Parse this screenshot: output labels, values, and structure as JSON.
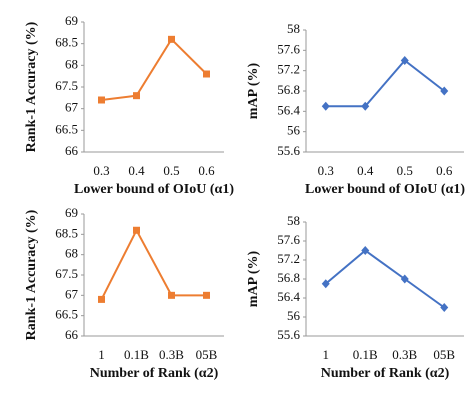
{
  "chart_data": [
    {
      "type": "line",
      "marker": "square",
      "color": "#ED7D31",
      "ylabel": "Rank-1 Accuracy (%)",
      "xlabel": "Lower bound of OIoU (α1)",
      "categories": [
        "0.3",
        "0.4",
        "0.5",
        "0.6"
      ],
      "values": [
        67.2,
        67.3,
        68.6,
        67.8
      ],
      "ylim": [
        66,
        69
      ],
      "yticks": [
        66,
        66.5,
        67,
        67.5,
        68,
        68.5,
        69
      ]
    },
    {
      "type": "line",
      "marker": "diamond",
      "color": "#4472C4",
      "ylabel": "mAP (%)",
      "xlabel": "Lower bound of OIoU (α1)",
      "categories": [
        "0.3",
        "0.4",
        "0.5",
        "0.6"
      ],
      "values": [
        56.5,
        56.5,
        57.4,
        56.8
      ],
      "ylim": [
        55.6,
        58
      ],
      "yticks": [
        55.6,
        56,
        56.4,
        56.8,
        57.2,
        57.6,
        58
      ]
    },
    {
      "type": "line",
      "marker": "square",
      "color": "#ED7D31",
      "ylabel": "Rank-1 Accuracy (%)",
      "xlabel": "Number of Rank (α2)",
      "categories": [
        "1",
        "0.1B",
        "0.3B",
        "05B"
      ],
      "values": [
        66.9,
        68.6,
        67.0,
        67.0
      ],
      "ylim": [
        66,
        69
      ],
      "yticks": [
        66,
        66.5,
        67,
        67.5,
        68,
        68.5,
        69
      ]
    },
    {
      "type": "line",
      "marker": "diamond",
      "color": "#4472C4",
      "ylabel": "mAP (%)",
      "xlabel": "Number of Rank (α2)",
      "categories": [
        "1",
        "0.1B",
        "0.3B",
        "05B"
      ],
      "values": [
        56.7,
        57.4,
        56.8,
        56.2
      ],
      "ylim": [
        55.6,
        58
      ],
      "yticks": [
        55.6,
        56,
        56.4,
        56.8,
        57.2,
        57.6,
        58
      ]
    }
  ]
}
